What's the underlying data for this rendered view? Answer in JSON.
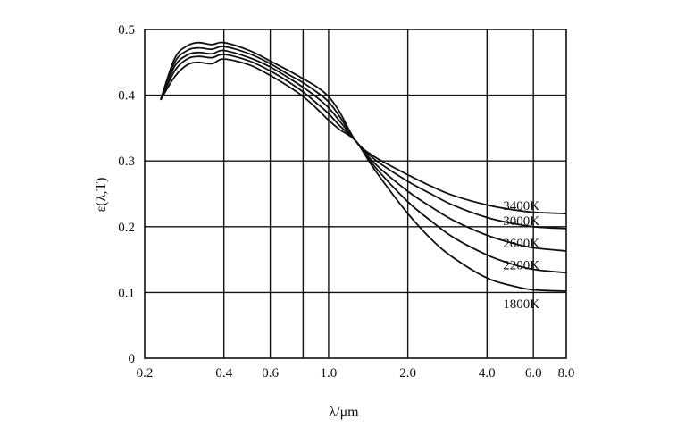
{
  "chart_data": {
    "type": "line",
    "title": "",
    "xlabel": "λ/μm",
    "ylabel": "ε(λ,T)",
    "x_scale": "log",
    "xlim": [
      0.2,
      8.0
    ],
    "ylim": [
      0,
      0.5
    ],
    "x_ticks": [
      {
        "value": 0.2,
        "label": "0.2"
      },
      {
        "value": 0.4,
        "label": "0.4"
      },
      {
        "value": 0.6,
        "label": "0.6"
      },
      {
        "value": 1.0,
        "label": "1.0"
      },
      {
        "value": 2.0,
        "label": "2.0"
      },
      {
        "value": 4.0,
        "label": "4.0"
      },
      {
        "value": 6.0,
        "label": "6.0"
      },
      {
        "value": 8.0,
        "label": "8.0"
      }
    ],
    "x_gridlines": [
      0.4,
      0.6,
      0.8,
      1.0,
      2.0,
      4.0,
      6.0
    ],
    "y_ticks": [
      {
        "value": 0,
        "label": "0"
      },
      {
        "value": 0.1,
        "label": "0.1"
      },
      {
        "value": 0.2,
        "label": "0.2"
      },
      {
        "value": 0.3,
        "label": "0.3"
      },
      {
        "value": 0.4,
        "label": "0.4"
      },
      {
        "value": 0.5,
        "label": "0.5"
      }
    ],
    "y_gridlines": [
      0.1,
      0.2,
      0.3,
      0.4
    ],
    "series": [
      {
        "name": "3400K",
        "x": [
          0.23,
          0.26,
          0.29,
          0.32,
          0.36,
          0.4,
          0.5,
          0.6,
          0.7,
          0.8,
          0.9,
          1.0,
          1.1,
          1.27,
          1.5,
          2.0,
          2.5,
          3.0,
          4.0,
          5.0,
          6.0,
          8.0
        ],
        "y": [
          0.393,
          0.456,
          0.475,
          0.48,
          0.477,
          0.48,
          0.468,
          0.452,
          0.438,
          0.425,
          0.413,
          0.398,
          0.375,
          0.33,
          0.306,
          0.279,
          0.26,
          0.247,
          0.233,
          0.226,
          0.222,
          0.22
        ]
      },
      {
        "name": "3000K",
        "x": [
          0.23,
          0.26,
          0.29,
          0.32,
          0.36,
          0.4,
          0.5,
          0.6,
          0.7,
          0.8,
          0.9,
          1.0,
          1.1,
          1.27,
          1.5,
          2.0,
          2.5,
          3.0,
          4.0,
          5.0,
          6.0,
          8.0
        ],
        "y": [
          0.393,
          0.45,
          0.468,
          0.472,
          0.47,
          0.474,
          0.463,
          0.448,
          0.432,
          0.419,
          0.405,
          0.39,
          0.368,
          0.33,
          0.302,
          0.269,
          0.248,
          0.232,
          0.214,
          0.205,
          0.2,
          0.197
        ]
      },
      {
        "name": "2600K",
        "x": [
          0.23,
          0.26,
          0.29,
          0.32,
          0.36,
          0.4,
          0.5,
          0.6,
          0.7,
          0.8,
          0.9,
          1.0,
          1.1,
          1.27,
          1.5,
          2.0,
          2.5,
          3.0,
          4.0,
          5.0,
          6.0,
          8.0
        ],
        "y": [
          0.393,
          0.444,
          0.461,
          0.465,
          0.463,
          0.468,
          0.457,
          0.443,
          0.427,
          0.412,
          0.397,
          0.381,
          0.361,
          0.33,
          0.296,
          0.254,
          0.228,
          0.209,
          0.187,
          0.175,
          0.168,
          0.163
        ]
      },
      {
        "name": "2200K",
        "x": [
          0.23,
          0.26,
          0.29,
          0.32,
          0.36,
          0.4,
          0.5,
          0.6,
          0.7,
          0.8,
          0.9,
          1.0,
          1.1,
          1.27,
          1.5,
          2.0,
          2.5,
          3.0,
          4.0,
          5.0,
          6.0,
          8.0
        ],
        "y": [
          0.393,
          0.437,
          0.455,
          0.459,
          0.457,
          0.462,
          0.452,
          0.437,
          0.421,
          0.405,
          0.388,
          0.372,
          0.354,
          0.33,
          0.291,
          0.238,
          0.206,
          0.183,
          0.157,
          0.143,
          0.135,
          0.13
        ]
      },
      {
        "name": "1800K",
        "x": [
          0.23,
          0.26,
          0.29,
          0.32,
          0.36,
          0.4,
          0.5,
          0.6,
          0.7,
          0.8,
          0.9,
          1.0,
          1.1,
          1.27,
          1.5,
          2.0,
          2.5,
          3.0,
          4.0,
          5.0,
          6.0,
          8.0
        ],
        "y": [
          0.393,
          0.428,
          0.446,
          0.45,
          0.448,
          0.455,
          0.446,
          0.43,
          0.414,
          0.398,
          0.38,
          0.362,
          0.348,
          0.33,
          0.286,
          0.22,
          0.178,
          0.152,
          0.122,
          0.11,
          0.104,
          0.102
        ]
      }
    ]
  }
}
